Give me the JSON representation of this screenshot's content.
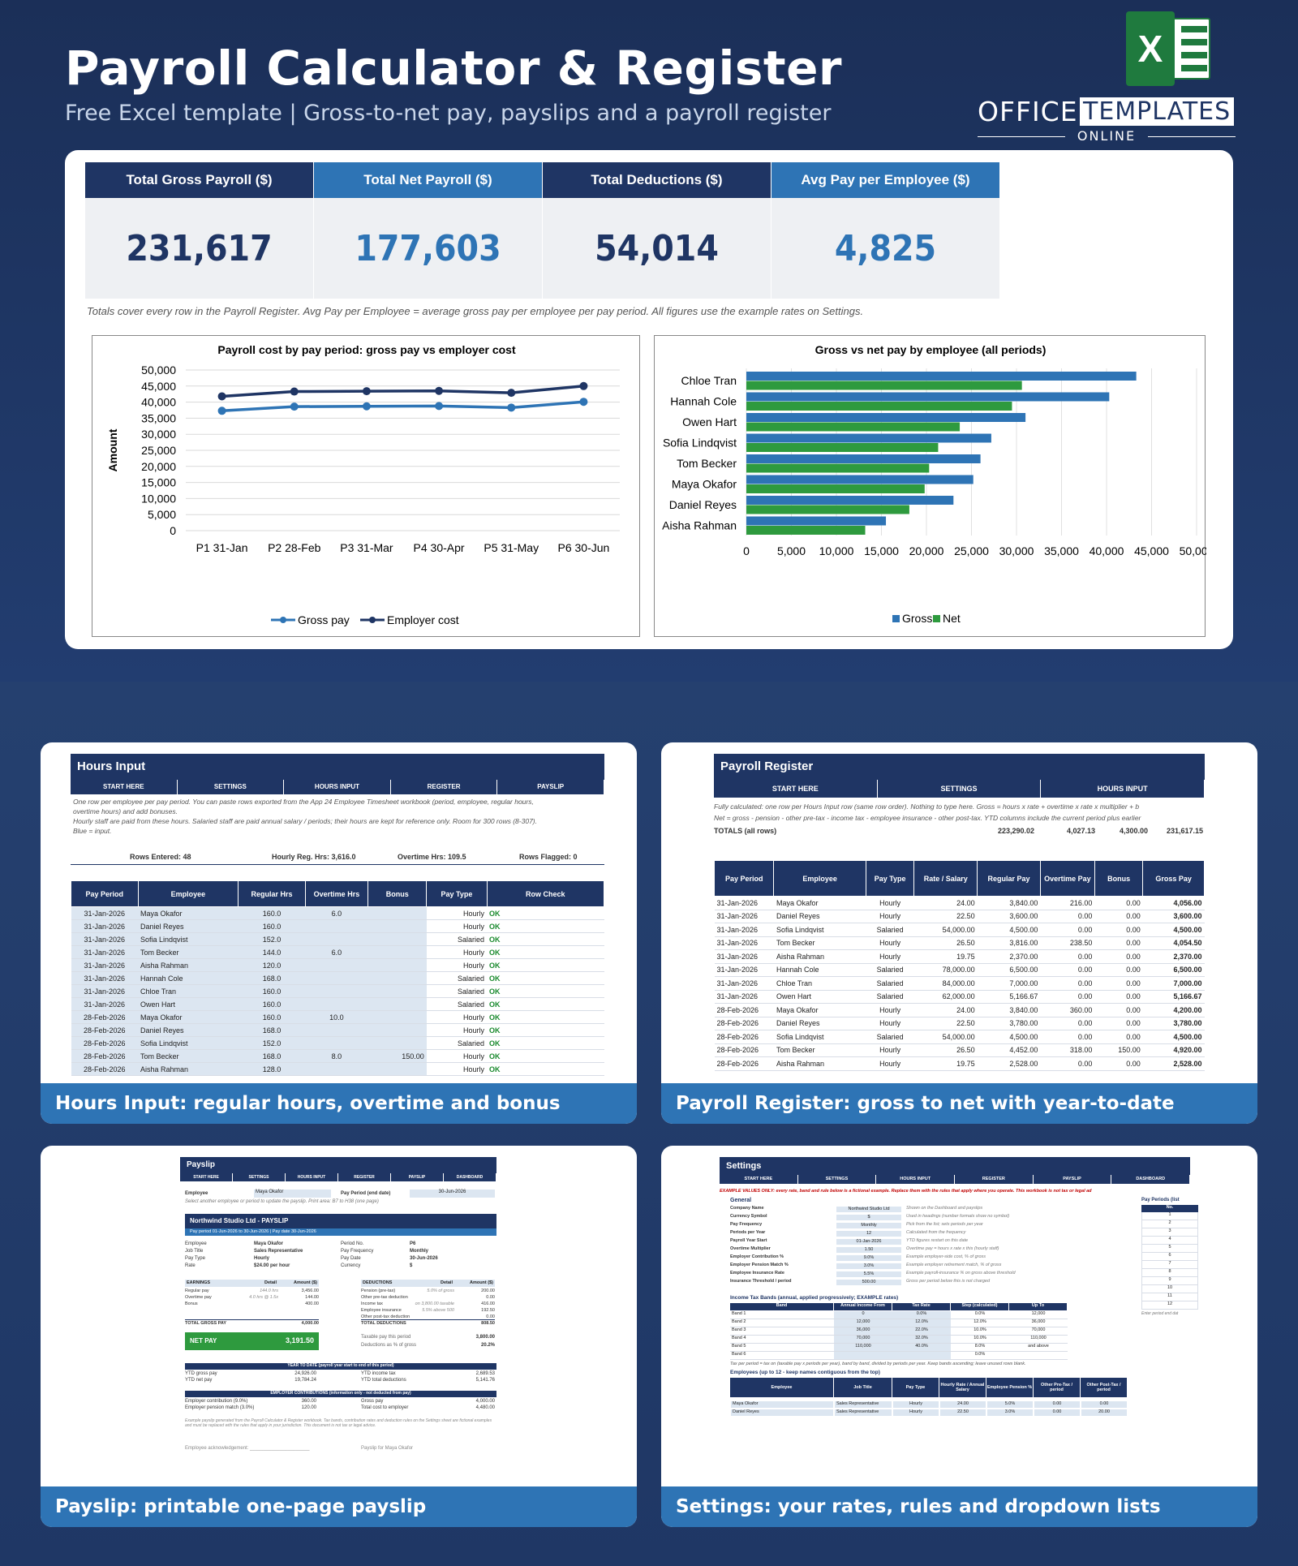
{
  "header": {
    "title": "Payroll Calculator & Register",
    "subtitle": "Free Excel template  |  Gross-to-net pay, payslips and a payroll register"
  },
  "logo": {
    "icon_letter": "X",
    "office": "OFFICE",
    "templates": "TEMPLATES",
    "online": "ONLINE"
  },
  "kpis": [
    {
      "label": "Total Gross Payroll ($)",
      "value": "231,617",
      "head_color": "#1f3564",
      "value_color": "#1f3564"
    },
    {
      "label": "Total Net Payroll ($)",
      "value": "177,603",
      "head_color": "#2e74b5",
      "value_color": "#2e74b5"
    },
    {
      "label": "Total Deductions ($)",
      "value": "54,014",
      "head_color": "#1f3564",
      "value_color": "#1f3564"
    },
    {
      "label": "Avg Pay per Employee ($)",
      "value": "4,825",
      "head_color": "#2e74b5",
      "value_color": "#2e74b5"
    }
  ],
  "note": "Totals cover every row in the Payroll Register. Avg Pay per Employee = average gross pay per employee per pay period. All figures use the example rates on Settings.",
  "chart_data": [
    {
      "type": "line",
      "title": "Payroll cost by pay period: gross pay vs employer cost",
      "ylabel": "Amount",
      "categories": [
        "P1 31-Jan",
        "P2 28-Feb",
        "P3 31-Mar",
        "P4 30-Apr",
        "P5 31-May",
        "P6 30-Jun"
      ],
      "ylim": [
        0,
        50000
      ],
      "yticks": [
        "0",
        "5,000",
        "10,000",
        "15,000",
        "20,000",
        "25,000",
        "30,000",
        "35,000",
        "40,000",
        "45,000",
        "50,000"
      ],
      "legend": "bottom",
      "series": [
        {
          "name": "Gross pay",
          "color": "#2e74b5",
          "values": [
            37300,
            38600,
            38700,
            38800,
            38300,
            40100
          ]
        },
        {
          "name": "Employer cost",
          "color": "#1f3564",
          "values": [
            41800,
            43300,
            43400,
            43500,
            42900,
            45000
          ]
        }
      ]
    },
    {
      "type": "bar",
      "orientation": "horizontal",
      "title": "Gross vs net pay by employee (all periods)",
      "categories": [
        "Chloe Tran",
        "Hannah Cole",
        "Owen Hart",
        "Sofia Lindqvist",
        "Tom Becker",
        "Maya Okafor",
        "Daniel Reyes",
        "Aisha Rahman"
      ],
      "xlim": [
        0,
        50000
      ],
      "xticks": [
        "0",
        "5,000",
        "10,000",
        "15,000",
        "20,000",
        "25,000",
        "30,000",
        "35,000",
        "40,000",
        "45,000",
        "50,000"
      ],
      "legend": "bottom",
      "series": [
        {
          "name": "Gross",
          "color": "#2e74b5",
          "values": [
            43300,
            40300,
            31000,
            27200,
            26000,
            25200,
            23000,
            15500
          ]
        },
        {
          "name": "Net",
          "color": "#2e9a3e",
          "values": [
            30600,
            29500,
            23700,
            21300,
            20300,
            19800,
            18100,
            13200
          ]
        }
      ]
    }
  ],
  "cards": {
    "hours": {
      "caption": "Hours Input: regular hours, overtime and bonus",
      "title": "Hours Input",
      "nav": [
        "START HERE",
        "SETTINGS",
        "HOURS INPUT",
        "REGISTER",
        "PAYSLIP"
      ],
      "notes": [
        "One row per employee per pay period. You can paste rows exported from the App 24 Employee Timesheet workbook (period, employee, regular hours,",
        "overtime hours) and add bonuses.",
        "Hourly staff are paid from these hours. Salaried staff are paid annual salary / periods; their hours are kept for reference only. Room for 300 rows (8-307).",
        "Blue = input."
      ],
      "stats": [
        "Rows Entered: 48",
        "Hourly Reg. Hrs: 3,616.0",
        "Overtime Hrs: 109.5",
        "Rows Flagged: 0"
      ],
      "columns": [
        "Pay Period",
        "Employee",
        "Regular Hrs",
        "Overtime Hrs",
        "Bonus",
        "Pay Type",
        "Row Check"
      ],
      "rows": [
        [
          "31-Jan-2026",
          "Maya Okafor",
          "160.0",
          "6.0",
          "",
          "Hourly",
          "OK"
        ],
        [
          "31-Jan-2026",
          "Daniel Reyes",
          "160.0",
          "",
          "",
          "Hourly",
          "OK"
        ],
        [
          "31-Jan-2026",
          "Sofia Lindqvist",
          "152.0",
          "",
          "",
          "Salaried",
          "OK"
        ],
        [
          "31-Jan-2026",
          "Tom Becker",
          "144.0",
          "6.0",
          "",
          "Hourly",
          "OK"
        ],
        [
          "31-Jan-2026",
          "Aisha Rahman",
          "120.0",
          "",
          "",
          "Hourly",
          "OK"
        ],
        [
          "31-Jan-2026",
          "Hannah Cole",
          "168.0",
          "",
          "",
          "Salaried",
          "OK"
        ],
        [
          "31-Jan-2026",
          "Chloe Tran",
          "160.0",
          "",
          "",
          "Salaried",
          "OK"
        ],
        [
          "31-Jan-2026",
          "Owen Hart",
          "160.0",
          "",
          "",
          "Salaried",
          "OK"
        ],
        [
          "28-Feb-2026",
          "Maya Okafor",
          "160.0",
          "10.0",
          "",
          "Hourly",
          "OK"
        ],
        [
          "28-Feb-2026",
          "Daniel Reyes",
          "168.0",
          "",
          "",
          "Hourly",
          "OK"
        ],
        [
          "28-Feb-2026",
          "Sofia Lindqvist",
          "152.0",
          "",
          "",
          "Salaried",
          "OK"
        ],
        [
          "28-Feb-2026",
          "Tom Becker",
          "168.0",
          "8.0",
          "150.00",
          "Hourly",
          "OK"
        ],
        [
          "28-Feb-2026",
          "Aisha Rahman",
          "128.0",
          "",
          "",
          "Hourly",
          "OK"
        ]
      ]
    },
    "register": {
      "caption": "Payroll Register: gross to net with year-to-date",
      "title": "Payroll Register",
      "nav": [
        "START HERE",
        "SETTINGS",
        "HOURS INPUT"
      ],
      "notes": [
        "Fully calculated: one row per Hours Input row (same row order). Nothing to type here. Gross = hours x rate + overtime x rate x multiplier + b",
        "Net = gross - pension - other pre-tax - income tax - employee insurance - other post-tax. YTD columns include the current period plus earlier"
      ],
      "totals": {
        "label": "TOTALS (all rows)",
        "values": [
          "223,290.02",
          "4,027.13",
          "4,300.00",
          "231,617.15"
        ]
      },
      "columns": [
        "Pay Period",
        "Employee",
        "Pay Type",
        "Rate / Salary",
        "Regular Pay",
        "Overtime Pay",
        "Bonus",
        "Gross Pay"
      ],
      "rows": [
        [
          "31-Jan-2026",
          "Maya Okafor",
          "Hourly",
          "24.00",
          "3,840.00",
          "216.00",
          "0.00",
          "4,056.00"
        ],
        [
          "31-Jan-2026",
          "Daniel Reyes",
          "Hourly",
          "22.50",
          "3,600.00",
          "0.00",
          "0.00",
          "3,600.00"
        ],
        [
          "31-Jan-2026",
          "Sofia Lindqvist",
          "Salaried",
          "54,000.00",
          "4,500.00",
          "0.00",
          "0.00",
          "4,500.00"
        ],
        [
          "31-Jan-2026",
          "Tom Becker",
          "Hourly",
          "26.50",
          "3,816.00",
          "238.50",
          "0.00",
          "4,054.50"
        ],
        [
          "31-Jan-2026",
          "Aisha Rahman",
          "Hourly",
          "19.75",
          "2,370.00",
          "0.00",
          "0.00",
          "2,370.00"
        ],
        [
          "31-Jan-2026",
          "Hannah Cole",
          "Salaried",
          "78,000.00",
          "6,500.00",
          "0.00",
          "0.00",
          "6,500.00"
        ],
        [
          "31-Jan-2026",
          "Chloe Tran",
          "Salaried",
          "84,000.00",
          "7,000.00",
          "0.00",
          "0.00",
          "7,000.00"
        ],
        [
          "31-Jan-2026",
          "Owen Hart",
          "Salaried",
          "62,000.00",
          "5,166.67",
          "0.00",
          "0.00",
          "5,166.67"
        ],
        [
          "28-Feb-2026",
          "Maya Okafor",
          "Hourly",
          "24.00",
          "3,840.00",
          "360.00",
          "0.00",
          "4,200.00"
        ],
        [
          "28-Feb-2026",
          "Daniel Reyes",
          "Hourly",
          "22.50",
          "3,780.00",
          "0.00",
          "0.00",
          "3,780.00"
        ],
        [
          "28-Feb-2026",
          "Sofia Lindqvist",
          "Salaried",
          "54,000.00",
          "4,500.00",
          "0.00",
          "0.00",
          "4,500.00"
        ],
        [
          "28-Feb-2026",
          "Tom Becker",
          "Hourly",
          "26.50",
          "4,452.00",
          "318.00",
          "150.00",
          "4,920.00"
        ],
        [
          "28-Feb-2026",
          "Aisha Rahman",
          "Hourly",
          "19.75",
          "2,528.00",
          "0.00",
          "0.00",
          "2,528.00"
        ]
      ]
    },
    "payslip": {
      "caption": "Payslip: printable one-page payslip",
      "title": "Payslip",
      "nav": [
        "START HERE",
        "SETTINGS",
        "HOURS INPUT",
        "REGISTER",
        "PAYSLIP",
        "DASHBOARD"
      ],
      "employee_label": "Employee",
      "employee_value": "Maya Okafor",
      "period_label": "Pay Period (end date)",
      "period_value": "30-Jun-2026",
      "hint": "Select another employee or period to update the payslip. Print area: B7 to H38 (one page)",
      "company": "Northwind Studio Ltd  -  PAYSLIP",
      "period_bar": "Pay period 01-Jun-2026 to 30-Jun-2026  |  Pay date 30-Jun-2026",
      "info_left": [
        [
          "Employee",
          "Maya Okafor"
        ],
        [
          "Job Title",
          "Sales Representative"
        ],
        [
          "Pay Type",
          "Hourly"
        ],
        [
          "Rate",
          "$24.00 per hour"
        ]
      ],
      "info_right": [
        [
          "Period No.",
          "P6"
        ],
        [
          "Pay Frequency",
          "Monthly"
        ],
        [
          "Pay Date",
          "30-Jun-2026"
        ],
        [
          "Currency",
          "$"
        ]
      ],
      "earn_head": [
        "EARNINGS",
        "Detail",
        "Amount ($)"
      ],
      "earnings": [
        [
          "Regular pay",
          "144.0 hrs",
          "3,456.00"
        ],
        [
          "Overtime pay",
          "4.0 hrs @ 1.5x",
          "144.00"
        ],
        [
          "Bonus",
          "",
          "400.00"
        ]
      ],
      "earn_total": [
        "TOTAL GROSS PAY",
        "4,000.00"
      ],
      "ded_head": [
        "DEDUCTIONS",
        "Detail",
        "Amount ($)"
      ],
      "deductions": [
        [
          "Pension (pre-tax)",
          "5.0% of gross",
          "200.00"
        ],
        [
          "Other pre-tax deduction",
          "",
          "0.00"
        ],
        [
          "Income tax",
          "on 3,800.00 taxable",
          "416.00"
        ],
        [
          "Employee insurance",
          "5.5% above 500",
          "192.50"
        ],
        [
          "Other post-tax deduction",
          "",
          "0.00"
        ]
      ],
      "ded_total": [
        "TOTAL DEDUCTIONS",
        "808.50"
      ],
      "net_label": "NET PAY",
      "net_value": "3,191.50",
      "taxable": [
        [
          "Taxable pay this period",
          "3,800.00"
        ],
        [
          "Deductions as % of gross",
          "20.2%"
        ]
      ],
      "ytd_head": "YEAR TO DATE (payroll year start to end of this period)",
      "ytd_left": [
        [
          "YTD gross pay",
          "24,926.00"
        ],
        [
          "YTD net pay",
          "19,784.24"
        ]
      ],
      "ytd_right": [
        [
          "YTD income tax",
          "2,689.53"
        ],
        [
          "YTD total deductions",
          "5,141.76"
        ]
      ],
      "emp_head": "EMPLOYER CONTRIBUTIONS (information only - not deducted from pay)",
      "emp_left": [
        [
          "Employer contribution (9.0%)",
          "360.00"
        ],
        [
          "Employer pension match (3.0%)",
          "120.00"
        ]
      ],
      "emp_right": [
        [
          "Gross pay",
          "4,000.00"
        ],
        [
          "Total cost to employer",
          "4,480.00"
        ]
      ],
      "footnote": "Example payslip generated from the Payroll Calculator & Register workbook. Tax bands, contribution rates and deduction rules on the Settings sheet are fictional examples and must be replaced with the rules that apply in your jurisdiction. This document is not tax or legal advice.",
      "ack": "Employee acknowledgement: ______________________",
      "for": "Payslip for Maya Okafor"
    },
    "settings": {
      "caption": "Settings: your rates, rules and dropdown lists",
      "title": "Settings",
      "nav": [
        "START HERE",
        "SETTINGS",
        "HOURS INPUT",
        "REGISTER",
        "PAYSLIP",
        "DASHBOARD"
      ],
      "warning": "EXAMPLE VALUES ONLY: every rate, band and rule below is a fictional example. Replace them with the rules that apply where you operate. This workbook is not tax or legal ad",
      "general_head": "General",
      "general": [
        [
          "Company Name",
          "Northwind Studio Ltd",
          "Shown on the Dashboard and payslips"
        ],
        [
          "Currency Symbol",
          "$",
          "Used in headings (number formats show no symbol)"
        ],
        [
          "Pay Frequency",
          "Monthly",
          "Pick from the list; sets periods per year"
        ],
        [
          "Periods per Year",
          "12",
          "Calculated from the frequency"
        ],
        [
          "Payroll Year Start",
          "01-Jan-2026",
          "YTD figures restart on this date"
        ],
        [
          "Overtime Multiplier",
          "1.50",
          "Overtime pay = hours x rate x this (hourly staff)"
        ],
        [
          "Employer Contribution %",
          "9.0%",
          "Example employer-side cost, % of gross"
        ],
        [
          "Employer Pension Match %",
          "3.0%",
          "Example employer retirement match, % of gross"
        ],
        [
          "Employee Insurance Rate",
          "5.5%",
          "Example payroll-insurance % on gross above threshold"
        ],
        [
          "Insurance Threshold / period",
          "500.00",
          "Gross per period below this is not charged"
        ]
      ],
      "periods_head": "Pay Periods (list",
      "periods_col": "No.",
      "periods": [
        "1",
        "2",
        "3",
        "4",
        "5",
        "6",
        "7",
        "8",
        "9",
        "10",
        "11",
        "12"
      ],
      "periods_note": "Enter period end dat",
      "bands_head": "Income Tax Bands (annual, applied progressively; EXAMPLE rates)",
      "bands_cols": [
        "Band",
        "Annual Income From",
        "Tax Rate",
        "Step (calculated)",
        "Up To"
      ],
      "bands": [
        [
          "Band 1",
          "0",
          "0.0%",
          "0.0%",
          "12,000"
        ],
        [
          "Band 2",
          "12,000",
          "12.0%",
          "12.0%",
          "36,000"
        ],
        [
          "Band 3",
          "36,000",
          "22.0%",
          "10.0%",
          "70,000"
        ],
        [
          "Band 4",
          "70,000",
          "32.0%",
          "10.0%",
          "110,000"
        ],
        [
          "Band 5",
          "110,000",
          "40.0%",
          "8.0%",
          "and above"
        ],
        [
          "Band 6",
          "",
          "",
          "0.0%",
          ""
        ]
      ],
      "bands_note": "Tax per period = tax on (taxable pay x periods per year), band by band, divided by periods per year. Keep bands ascending; leave unused rows blank.",
      "emp_head": "Employees (up to 12 - keep names contiguous from the top)",
      "emp_cols": [
        "Employee",
        "Job Title",
        "Pay Type",
        "Hourly Rate / Annual Salary",
        "Employee Pension %",
        "Other Pre-Tax / period",
        "Other Post-Tax / period"
      ],
      "employees": [
        [
          "Maya Okafor",
          "Sales Representative",
          "Hourly",
          "24.00",
          "5.0%",
          "0.00",
          "0.00"
        ],
        [
          "Daniel Reyes",
          "Sales Representative",
          "Hourly",
          "22.50",
          "3.0%",
          "0.00",
          "20.00"
        ]
      ]
    }
  }
}
